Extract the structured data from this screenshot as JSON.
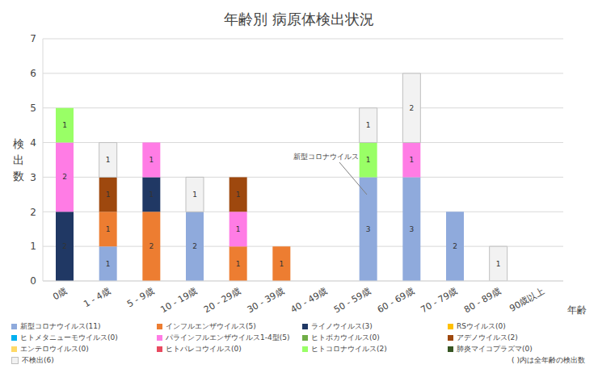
{
  "chart_data": {
    "type": "bar",
    "title": "年齢別 病原体検出状況",
    "x_label": "年齢",
    "y_label": "検出数",
    "annotation": "新型コロナウイルス",
    "note": "( )内は全年齢の検出数",
    "categories": [
      "0歳",
      "1 - 4歳",
      "5 - 9歳",
      "10 - 19歳",
      "20 - 29歳",
      "30 - 39歳",
      "40 - 49歳",
      "50 - 59歳",
      "60 - 69歳",
      "70 - 79歳",
      "80 - 89歳",
      "90歳以上"
    ],
    "series": [
      {
        "name": "新型コロナウイルス(11)",
        "color": "#8faadc",
        "values": [
          0,
          1,
          0,
          2,
          0,
          0,
          0,
          3,
          3,
          2,
          0,
          0
        ]
      },
      {
        "name": "インフルエンザウイルス(5)",
        "color": "#ed7d31",
        "values": [
          0,
          1,
          2,
          0,
          1,
          1,
          0,
          0,
          0,
          0,
          0,
          0
        ]
      },
      {
        "name": "ライノウイルス(3)",
        "color": "#203864",
        "values": [
          2,
          0,
          1,
          0,
          0,
          0,
          0,
          0,
          0,
          0,
          0,
          0
        ]
      },
      {
        "name": "RSウイルス(0)",
        "color": "#ffc000",
        "values": [
          0,
          0,
          0,
          0,
          0,
          0,
          0,
          0,
          0,
          0,
          0,
          0
        ]
      },
      {
        "name": "ヒトメタニューモウイルス(0)",
        "color": "#00b0f0",
        "values": [
          0,
          0,
          0,
          0,
          0,
          0,
          0,
          0,
          0,
          0,
          0,
          0
        ]
      },
      {
        "name": "パラインフルエンザウイルス1-4型(5)",
        "color": "#ff7ce5",
        "values": [
          2,
          0,
          1,
          0,
          1,
          0,
          0,
          0,
          1,
          0,
          0,
          0
        ]
      },
      {
        "name": "ヒトボカウイルス(0)",
        "color": "#70ad47",
        "values": [
          0,
          0,
          0,
          0,
          0,
          0,
          0,
          0,
          0,
          0,
          0,
          0
        ]
      },
      {
        "name": "アデノウイルス(2)",
        "color": "#9e480e",
        "values": [
          0,
          1,
          0,
          0,
          1,
          0,
          0,
          0,
          0,
          0,
          0,
          0
        ]
      },
      {
        "name": "エンテロウイルス(0)",
        "color": "#ffd966",
        "values": [
          0,
          0,
          0,
          0,
          0,
          0,
          0,
          0,
          0,
          0,
          0,
          0
        ]
      },
      {
        "name": "ヒトパレコウイルス(0)",
        "color": "#e84a5f",
        "values": [
          0,
          0,
          0,
          0,
          0,
          0,
          0,
          0,
          0,
          0,
          0,
          0
        ]
      },
      {
        "name": "ヒトコロナウイルス(2)",
        "color": "#99ff66",
        "values": [
          1,
          0,
          0,
          0,
          0,
          0,
          0,
          1,
          0,
          0,
          0,
          0
        ]
      },
      {
        "name": "肺炎マイコプラズマ(0)",
        "color": "#375623",
        "values": [
          0,
          0,
          0,
          0,
          0,
          0,
          0,
          0,
          0,
          0,
          0,
          0
        ]
      },
      {
        "name": "不検出(6)",
        "color": "#f2f2f2",
        "values": [
          0,
          1,
          0,
          1,
          0,
          0,
          0,
          1,
          2,
          0,
          1,
          0
        ]
      }
    ],
    "ylim": [
      0,
      7
    ],
    "yticks": [
      0,
      1,
      2,
      3,
      4,
      5,
      6,
      7
    ],
    "grid": true,
    "stacked": true,
    "data_labels": true,
    "legend": "bottom"
  }
}
